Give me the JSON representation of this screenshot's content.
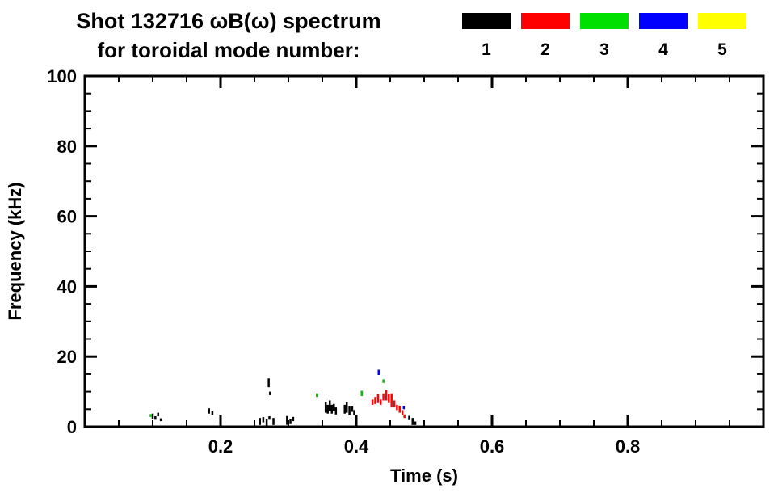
{
  "header": {
    "title": "Shot 132716 ωB(ω) spectrum",
    "subtitle": "for toroidal mode number:",
    "legend": [
      {
        "label": "1",
        "color": "#000000"
      },
      {
        "label": "2",
        "color": "#ff0000"
      },
      {
        "label": "3",
        "color": "#00e000"
      },
      {
        "label": "4",
        "color": "#0000ff"
      },
      {
        "label": "5",
        "color": "#ffff00"
      }
    ]
  },
  "chart_data": {
    "type": "scatter",
    "title": "Shot 132716 ωB(ω) spectrum for toroidal mode number:",
    "xlabel": "Time (s)",
    "ylabel": "Frequency (kHz)",
    "xlim": [
      0,
      1
    ],
    "ylim": [
      0,
      100
    ],
    "xticks": [
      0.2,
      0.4,
      0.6,
      0.8
    ],
    "yticks": [
      0,
      20,
      40,
      60,
      80,
      100
    ],
    "x_minor_step": 0.05,
    "y_minor_step": 5,
    "grid": false,
    "legend_position": "top-right",
    "series": [
      {
        "name": "mode 1",
        "color": "#000000",
        "points": [
          [
            0.1,
            3,
            1.5
          ],
          [
            0.104,
            2.5,
            1
          ],
          [
            0.108,
            3.5,
            1
          ],
          [
            0.112,
            2,
            0.8
          ],
          [
            0.183,
            4.5,
            1.5
          ],
          [
            0.188,
            4,
            1.2
          ],
          [
            0.258,
            1.5,
            2
          ],
          [
            0.263,
            2,
            1.5
          ],
          [
            0.268,
            1.2,
            1.8
          ],
          [
            0.272,
            2.5,
            1
          ],
          [
            0.271,
            12.5,
            2.5
          ],
          [
            0.273,
            9.5,
            1
          ],
          [
            0.278,
            1.5,
            2
          ],
          [
            0.298,
            1.8,
            2.5
          ],
          [
            0.303,
            1.5,
            1.5
          ],
          [
            0.307,
            2.2,
            1.2
          ],
          [
            0.355,
            5.5,
            3
          ],
          [
            0.358,
            5,
            2.5
          ],
          [
            0.361,
            6,
            3
          ],
          [
            0.364,
            5,
            2.5
          ],
          [
            0.367,
            5.5,
            2
          ],
          [
            0.37,
            4.5,
            2
          ],
          [
            0.383,
            5,
            2.5
          ],
          [
            0.386,
            5.5,
            3
          ],
          [
            0.39,
            4.5,
            2.5
          ],
          [
            0.394,
            5,
            1.5
          ],
          [
            0.397,
            4,
            1.5
          ],
          [
            0.478,
            2.5,
            1.2
          ],
          [
            0.483,
            1.5,
            2
          ],
          [
            0.487,
            1,
            1
          ]
        ]
      },
      {
        "name": "mode 2",
        "color": "#ff0000",
        "points": [
          [
            0.424,
            7,
            1.5
          ],
          [
            0.428,
            7.5,
            2
          ],
          [
            0.432,
            8,
            2.5
          ],
          [
            0.436,
            7,
            1.5
          ],
          [
            0.44,
            8.5,
            2
          ],
          [
            0.444,
            9,
            3
          ],
          [
            0.448,
            8,
            2.5
          ],
          [
            0.452,
            7.5,
            4
          ],
          [
            0.456,
            6.5,
            2
          ],
          [
            0.46,
            5.5,
            1.5
          ],
          [
            0.464,
            5,
            2
          ],
          [
            0.468,
            4,
            1.5
          ],
          [
            0.471,
            3,
            1
          ]
        ]
      },
      {
        "name": "mode 3",
        "color": "#00c000",
        "points": [
          [
            0.097,
            3.2,
            0.8
          ],
          [
            0.342,
            9,
            1
          ],
          [
            0.408,
            9.5,
            1.5
          ],
          [
            0.44,
            13,
            1
          ]
        ]
      },
      {
        "name": "mode 4",
        "color": "#0000ff",
        "points": [
          [
            0.433,
            15.5,
            1.5
          ],
          [
            0.47,
            5.5,
            1
          ]
        ]
      },
      {
        "name": "mode 5",
        "color": "#ffff00",
        "points": []
      }
    ]
  }
}
